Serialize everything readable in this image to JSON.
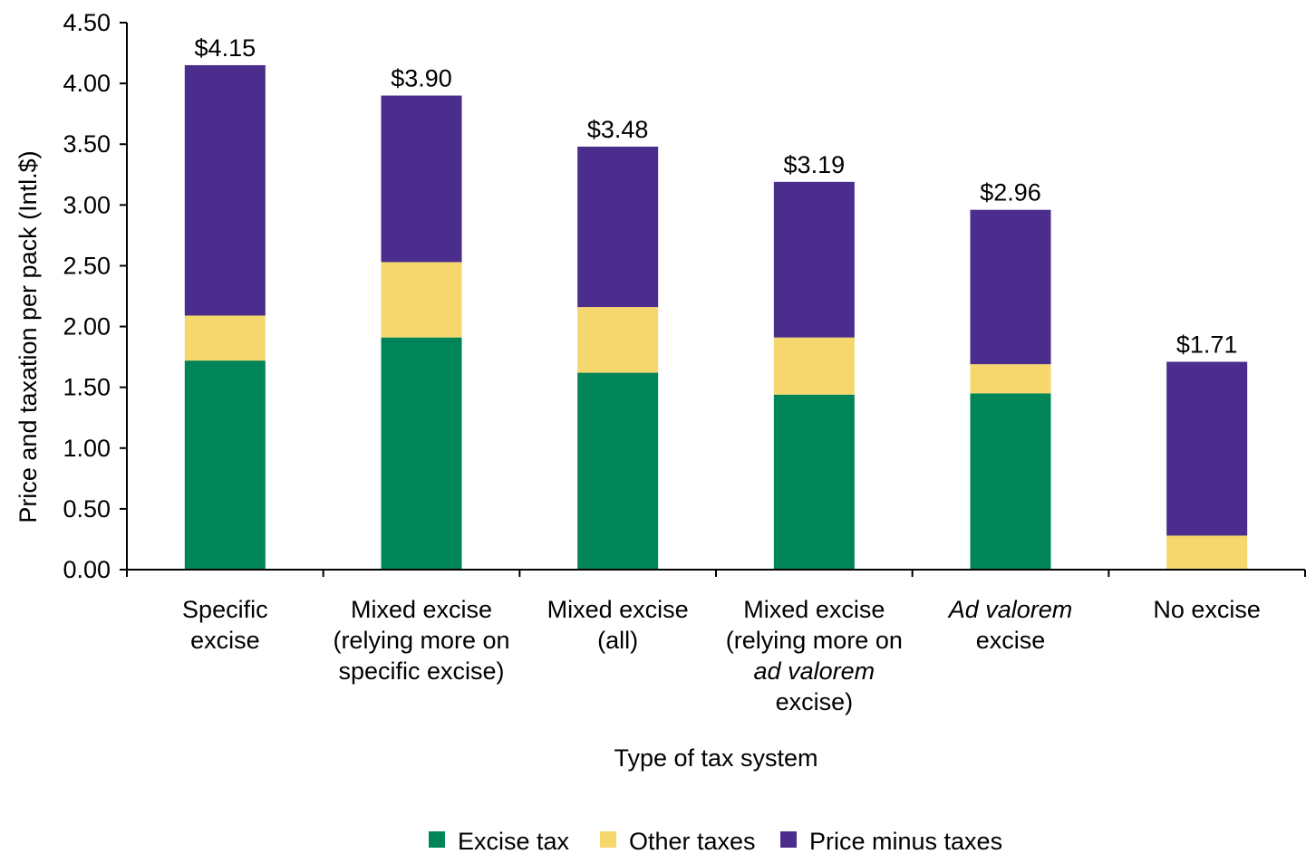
{
  "chart_data": {
    "type": "bar",
    "stacked": true,
    "title": "",
    "xlabel": "Type of tax system",
    "ylabel": "Price and taxation per pack (Intl.$)",
    "ylim": [
      0,
      4.5
    ],
    "yticks": [
      "0.00",
      "0.50",
      "1.00",
      "1.50",
      "2.00",
      "2.50",
      "3.00",
      "3.50",
      "4.00",
      "4.50"
    ],
    "grid": false,
    "legend_position": "bottom",
    "categories": [
      {
        "lines": [
          {
            "parts": [
              {
                "t": "Specific",
                "i": false
              }
            ]
          },
          {
            "parts": [
              {
                "t": "excise",
                "i": false
              }
            ]
          }
        ]
      },
      {
        "lines": [
          {
            "parts": [
              {
                "t": "Mixed excise",
                "i": false
              }
            ]
          },
          {
            "parts": [
              {
                "t": "(relying more on",
                "i": false
              }
            ]
          },
          {
            "parts": [
              {
                "t": "specific excise)",
                "i": false
              }
            ]
          }
        ]
      },
      {
        "lines": [
          {
            "parts": [
              {
                "t": "Mixed excise",
                "i": false
              }
            ]
          },
          {
            "parts": [
              {
                "t": "(all)",
                "i": false
              }
            ]
          }
        ]
      },
      {
        "lines": [
          {
            "parts": [
              {
                "t": "Mixed excise",
                "i": false
              }
            ]
          },
          {
            "parts": [
              {
                "t": "(relying more on",
                "i": false
              }
            ]
          },
          {
            "parts": [
              {
                "t": "ad valorem",
                "i": true
              }
            ]
          },
          {
            "parts": [
              {
                "t": "excise)",
                "i": false
              }
            ]
          }
        ]
      },
      {
        "lines": [
          {
            "parts": [
              {
                "t": "Ad valorem",
                "i": true
              }
            ]
          },
          {
            "parts": [
              {
                "t": "excise",
                "i": false
              }
            ]
          }
        ]
      },
      {
        "lines": [
          {
            "parts": [
              {
                "t": "No excise",
                "i": false
              }
            ]
          }
        ]
      }
    ],
    "series": [
      {
        "name": "Excise tax",
        "color": "#008558",
        "values": [
          1.72,
          1.91,
          1.62,
          1.44,
          1.45,
          0.0
        ]
      },
      {
        "name": "Other taxes",
        "color": "#f5d76e",
        "values": [
          0.37,
          0.62,
          0.54,
          0.47,
          0.24,
          0.28
        ]
      },
      {
        "name": "Price minus taxes",
        "color": "#4a2d8c",
        "values": [
          2.06,
          1.37,
          1.32,
          1.28,
          1.27,
          1.43
        ]
      }
    ],
    "totals": [
      4.15,
      3.9,
      3.48,
      3.19,
      2.96,
      1.71
    ],
    "total_labels": [
      "$4.15",
      "$3.90",
      "$3.48",
      "$3.19",
      "$2.96",
      "$1.71"
    ]
  }
}
